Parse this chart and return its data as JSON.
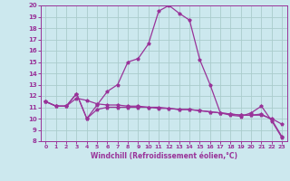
{
  "xlabel": "Windchill (Refroidissement éolien,°C)",
  "bg_color": "#cce8ee",
  "grid_color": "#aacccc",
  "line_color": "#993399",
  "xlim": [
    -0.5,
    23.5
  ],
  "ylim": [
    8,
    20
  ],
  "yticks": [
    8,
    9,
    10,
    11,
    12,
    13,
    14,
    15,
    16,
    17,
    18,
    19,
    20
  ],
  "xticks": [
    0,
    1,
    2,
    3,
    4,
    5,
    6,
    7,
    8,
    9,
    10,
    11,
    12,
    13,
    14,
    15,
    16,
    17,
    18,
    19,
    20,
    21,
    22,
    23
  ],
  "curve1_x": [
    0,
    1,
    2,
    3,
    4,
    5,
    6,
    7,
    8,
    9,
    10,
    11,
    12,
    13,
    14,
    15,
    16,
    17,
    18,
    19,
    20,
    21,
    22,
    23
  ],
  "curve1_y": [
    11.5,
    11.1,
    11.1,
    12.2,
    10.0,
    11.2,
    12.4,
    13.0,
    15.0,
    15.3,
    16.6,
    19.5,
    20.0,
    19.3,
    18.7,
    15.2,
    13.0,
    10.5,
    10.3,
    10.2,
    10.5,
    11.1,
    9.8,
    8.3
  ],
  "curve2_x": [
    0,
    1,
    2,
    3,
    4,
    5,
    6,
    7,
    8,
    9,
    10,
    11,
    12,
    13,
    14,
    15,
    16,
    17,
    18,
    19,
    20,
    21,
    22,
    23
  ],
  "curve2_y": [
    11.5,
    11.1,
    11.1,
    11.8,
    11.6,
    11.3,
    11.2,
    11.2,
    11.1,
    11.1,
    11.0,
    11.0,
    10.9,
    10.8,
    10.8,
    10.7,
    10.6,
    10.5,
    10.4,
    10.3,
    10.3,
    10.3,
    10.0,
    9.5
  ],
  "curve3_x": [
    0,
    1,
    2,
    3,
    4,
    5,
    6,
    7,
    8,
    9,
    10,
    11,
    12,
    13,
    14,
    15,
    16,
    17,
    18,
    19,
    20,
    21,
    22,
    23
  ],
  "curve3_y": [
    11.5,
    11.1,
    11.1,
    12.2,
    10.0,
    10.8,
    11.0,
    11.0,
    11.0,
    11.0,
    11.0,
    10.9,
    10.9,
    10.8,
    10.8,
    10.7,
    10.6,
    10.5,
    10.4,
    10.3,
    10.3,
    10.4,
    9.9,
    8.4
  ]
}
